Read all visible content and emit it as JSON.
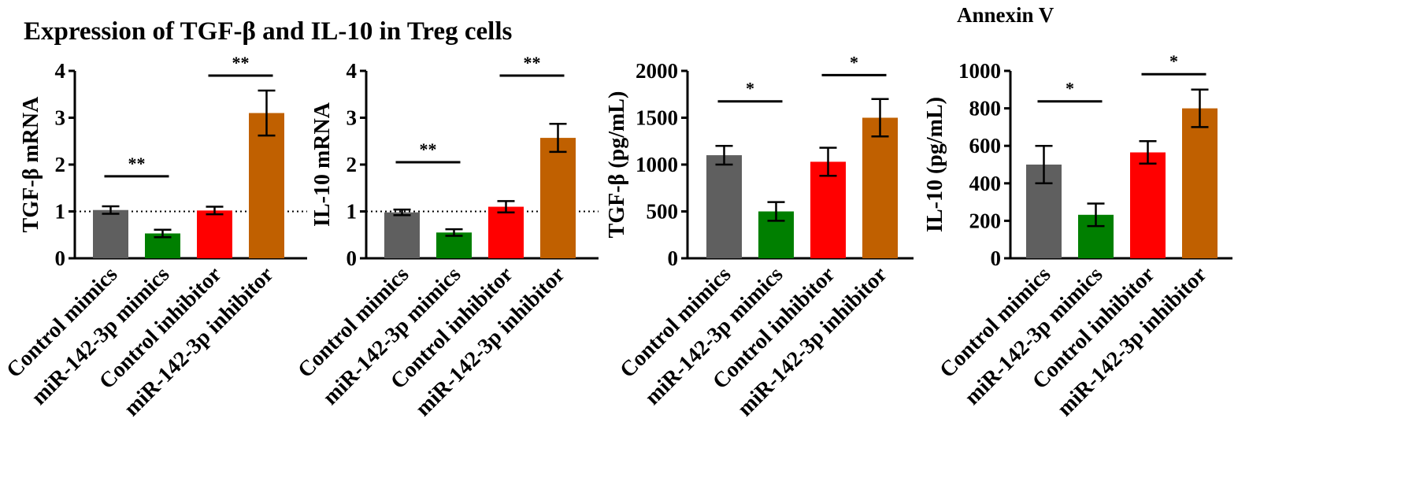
{
  "figure_title": "Expression of TGF-β and IL-10 in Treg cells",
  "top_label": "Annexin V",
  "chart_data": [
    {
      "type": "bar",
      "title": "",
      "ylabel": "TGF-β mRNA",
      "xlabel": "",
      "ylim": [
        0,
        4
      ],
      "yticks": [
        "0",
        "1",
        "2",
        "3",
        "4"
      ],
      "reference_line": 1,
      "categories": [
        "Control mimics",
        "miR-142-3p mimics",
        "Control inhibitor",
        "miR-142-3p inhibitor"
      ],
      "values": [
        1.03,
        0.53,
        1.02,
        3.1
      ],
      "errors": [
        0.08,
        0.08,
        0.08,
        0.48
      ],
      "colors": [
        "#5f5f5f",
        "#007f00",
        "#ff0000",
        "#c06000"
      ],
      "significance": [
        {
          "from": 0,
          "to": 1,
          "label": "**",
          "level": 1.8
        },
        {
          "from": 2,
          "to": 3,
          "label": "**",
          "level": 3.95
        }
      ]
    },
    {
      "type": "bar",
      "title": "",
      "ylabel": "IL-10 mRNA",
      "xlabel": "",
      "ylim": [
        0,
        4
      ],
      "yticks": [
        "0",
        "1",
        "2",
        "3",
        "4"
      ],
      "reference_line": 1,
      "categories": [
        "Control mimics",
        "miR-142-3p mimics",
        "Control inhibitor",
        "miR-142-3p inhibitor"
      ],
      "values": [
        0.98,
        0.55,
        1.1,
        2.57
      ],
      "errors": [
        0.06,
        0.07,
        0.12,
        0.3
      ],
      "colors": [
        "#5f5f5f",
        "#007f00",
        "#ff0000",
        "#c06000"
      ],
      "significance": [
        {
          "from": 0,
          "to": 1,
          "label": "**",
          "level": 2.1
        },
        {
          "from": 2,
          "to": 3,
          "label": "**",
          "level": 3.95
        }
      ]
    },
    {
      "type": "bar",
      "title": "",
      "ylabel": "TGF-β (pg/mL)",
      "xlabel": "",
      "ylim": [
        0,
        2000
      ],
      "yticks": [
        "0",
        "500",
        "1000",
        "1500",
        "2000"
      ],
      "reference_line": null,
      "categories": [
        "Control mimics",
        "miR-142-3p mimics",
        "Control inhibitor",
        "miR-142-3p inhibitor"
      ],
      "values": [
        1100,
        500,
        1030,
        1500
      ],
      "errors": [
        100,
        100,
        150,
        200
      ],
      "colors": [
        "#5f5f5f",
        "#007f00",
        "#ff0000",
        "#c06000"
      ],
      "significance": [
        {
          "from": 0,
          "to": 1,
          "label": "*",
          "level": 1700
        },
        {
          "from": 2,
          "to": 3,
          "label": "*",
          "level": 1980
        }
      ]
    },
    {
      "type": "bar",
      "title": "",
      "ylabel": "IL-10 (pg/mL)",
      "xlabel": "",
      "ylim": [
        0,
        1000
      ],
      "yticks": [
        "0",
        "200",
        "400",
        "600",
        "800",
        "1000"
      ],
      "reference_line": null,
      "categories": [
        "Control mimics",
        "miR-142-3p mimics",
        "Control inhibitor",
        "miR-142-3p inhibitor"
      ],
      "values": [
        500,
        232,
        565,
        800
      ],
      "errors": [
        100,
        60,
        60,
        100
      ],
      "colors": [
        "#5f5f5f",
        "#007f00",
        "#ff0000",
        "#c06000"
      ],
      "significance": [
        {
          "from": 0,
          "to": 1,
          "label": "*",
          "level": 850
        },
        {
          "from": 2,
          "to": 3,
          "label": "*",
          "level": 995
        }
      ]
    }
  ]
}
